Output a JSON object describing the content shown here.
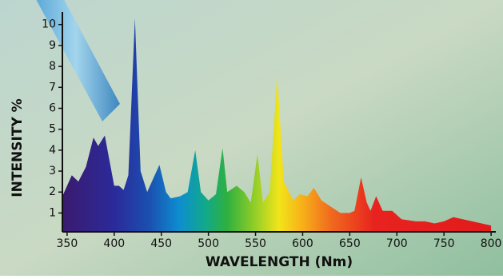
{
  "chart_data": {
    "type": "area",
    "x_label": "WAVELENGTH (Nm)",
    "y_label": "INTENSITY %",
    "x": [
      345,
      355,
      362,
      370,
      378,
      383,
      390,
      400,
      405,
      410,
      415,
      422,
      428,
      435,
      440,
      448,
      455,
      460,
      470,
      478,
      486,
      492,
      500,
      508,
      515,
      520,
      530,
      538,
      545,
      552,
      558,
      565,
      573,
      580,
      590,
      597,
      605,
      612,
      620,
      630,
      640,
      650,
      655,
      662,
      668,
      672,
      678,
      685,
      695,
      705,
      720,
      730,
      740,
      750,
      760,
      770,
      780,
      790,
      800
    ],
    "values": [
      1.8,
      2.8,
      2.5,
      3.2,
      4.6,
      4.2,
      4.7,
      2.3,
      2.3,
      2.1,
      2.8,
      10.3,
      3.0,
      2.0,
      2.5,
      3.3,
      2.0,
      1.7,
      1.8,
      2.0,
      4.0,
      2.0,
      1.6,
      1.9,
      4.1,
      2.0,
      2.3,
      2.0,
      1.5,
      3.8,
      1.5,
      2.0,
      7.6,
      2.5,
      1.6,
      1.9,
      1.8,
      2.2,
      1.6,
      1.3,
      1.0,
      1.0,
      1.1,
      2.7,
      1.5,
      1.1,
      1.8,
      1.1,
      1.1,
      0.7,
      0.6,
      0.6,
      0.5,
      0.6,
      0.8,
      0.7,
      0.6,
      0.5,
      0.4
    ],
    "xlim": [
      345,
      805
    ],
    "ylim": [
      0.1,
      10.6
    ],
    "xticks": [
      350,
      400,
      450,
      500,
      550,
      600,
      650,
      700,
      750,
      800
    ],
    "yticks": [
      1,
      2,
      3,
      4,
      5,
      6,
      7,
      8,
      9,
      10
    ]
  }
}
